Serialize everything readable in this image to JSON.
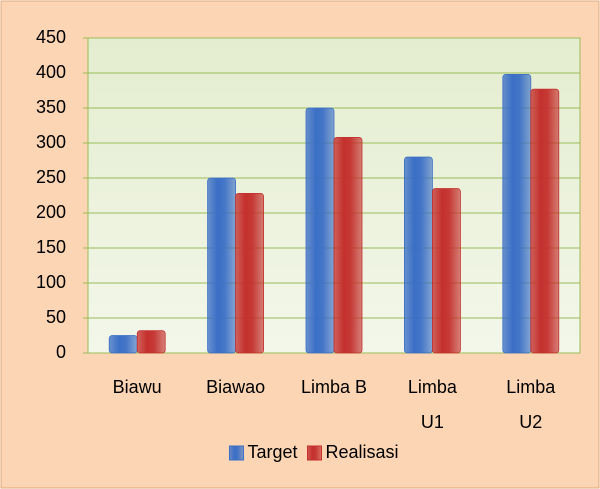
{
  "chart_data": {
    "type": "bar",
    "categories": [
      "Biawu",
      "Biawao",
      "Limba B",
      "Limba U1",
      "Limba U2"
    ],
    "series": [
      {
        "name": "Target",
        "color": "#3b6fc6",
        "values": [
          25,
          250,
          350,
          280,
          398
        ]
      },
      {
        "name": "Realisasi",
        "color": "#c4302d",
        "values": [
          32,
          228,
          308,
          235,
          377
        ]
      }
    ],
    "ylim": [
      0,
      450
    ],
    "yticks": [
      0,
      50,
      100,
      150,
      200,
      250,
      300,
      350,
      400,
      450
    ],
    "grid": true,
    "legend": "bottom"
  }
}
